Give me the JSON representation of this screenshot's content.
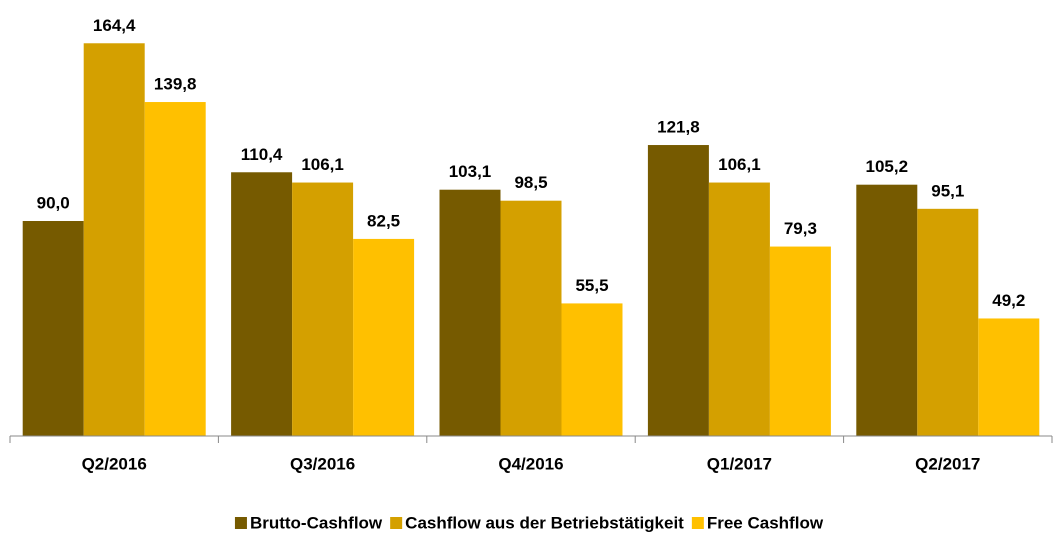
{
  "chart_data": {
    "type": "bar",
    "categories": [
      "Q2/2016",
      "Q3/2016",
      "Q4/2016",
      "Q1/2017",
      "Q2/2017"
    ],
    "series": [
      {
        "name": "Brutto-Cashflow",
        "color": "#765a00",
        "values": [
          90.0,
          110.4,
          103.1,
          121.8,
          105.2
        ],
        "value_labels": [
          "90,0",
          "110,4",
          "103,1",
          "121,8",
          "105,2"
        ]
      },
      {
        "name": "Cashflow aus der Betriebstätigkeit",
        "color": "#d4a000",
        "values": [
          164.4,
          106.1,
          98.5,
          106.1,
          95.1
        ],
        "value_labels": [
          "164,4",
          "106,1",
          "98,5",
          "106,1",
          "95,1"
        ]
      },
      {
        "name": "Free Cashflow",
        "color": "#ffc000",
        "values": [
          139.8,
          82.5,
          55.5,
          79.3,
          49.2
        ],
        "value_labels": [
          "139,8",
          "82,5",
          "55,5",
          "79,3",
          "49,2"
        ]
      }
    ],
    "ylim": [
      0,
      180
    ],
    "legend": "bottom"
  }
}
